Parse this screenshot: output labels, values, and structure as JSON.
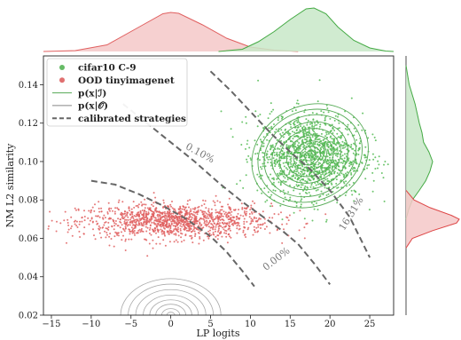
{
  "chart_data": {
    "type": "scatter",
    "xlabel": "LP logits",
    "ylabel": "NM L2 similarity",
    "xlim": [
      -16,
      28
    ],
    "ylim": [
      0.02,
      0.155
    ],
    "xticks": [
      -15,
      -10,
      -5,
      0,
      5,
      10,
      15,
      20,
      25
    ],
    "yticks": [
      0.02,
      0.04,
      0.06,
      0.08,
      0.1,
      0.12,
      0.14
    ],
    "xtick_labels": [
      "−15",
      "−10",
      "−5",
      "0",
      "5",
      "10",
      "15",
      "20",
      "25"
    ],
    "ytick_labels": [
      "0.02",
      "0.04",
      "0.06",
      "0.08",
      "0.10",
      "0.12",
      "0.14"
    ],
    "grid": false,
    "legend_position": "top-left",
    "legend": [
      {
        "label": "cifar10 C-9",
        "kind": "dot",
        "color": "#66bb66"
      },
      {
        "label": "OOD tinyimagenet",
        "kind": "dot",
        "color": "#e07070"
      },
      {
        "label": "p(x|ℐ)",
        "kind": "line",
        "color": "#55aa55"
      },
      {
        "label": "p(x|𝒪)",
        "kind": "line",
        "color": "#888888"
      },
      {
        "label": "calibrated strategies",
        "kind": "dash",
        "color": "#666666"
      }
    ],
    "series": [
      {
        "name": "cifar10 C-9",
        "color": "#55bb55",
        "cluster": {
          "center_x": 17.5,
          "center_y": 0.103,
          "spread_x": 3.3,
          "spread_y": 0.011,
          "n": 1400
        }
      },
      {
        "name": "OOD tinyimagenet",
        "color": "#e06060",
        "cluster": {
          "center_x": 0.5,
          "center_y": 0.069,
          "spread_x": 6.0,
          "spread_y": 0.0045,
          "n": 1300
        }
      }
    ],
    "density_in": {
      "color": "#55aa55",
      "center_x": 17.5,
      "center_y": 0.103,
      "sx": 3.6,
      "sy": 0.0125,
      "rho": 0.25,
      "levels": [
        0.95,
        0.85,
        0.75,
        0.62,
        0.5,
        0.38,
        0.27,
        0.17,
        0.09
      ]
    },
    "density_out": {
      "color": "#aaaaaa",
      "center_x": 0,
      "center_y": 0.02,
      "sx": 6.3,
      "sy": 0.019,
      "levels": [
        1.0,
        0.85,
        0.7,
        0.55,
        0.42,
        0.3,
        0.18,
        0.08
      ]
    },
    "strategies": [
      {
        "label": "0.10%",
        "color": "#666666",
        "points": [
          [
            -6,
            0.13
          ],
          [
            -3,
            0.12
          ],
          [
            0,
            0.11
          ],
          [
            3,
            0.1
          ],
          [
            6,
            0.089
          ],
          [
            9,
            0.079
          ],
          [
            12,
            0.07
          ],
          [
            14,
            0.064
          ],
          [
            16,
            0.057
          ],
          [
            18,
            0.047
          ],
          [
            20,
            0.036
          ]
        ],
        "label_at": [
          3.5,
          0.103
        ],
        "label_angle": 28
      },
      {
        "label": "16.31%",
        "color": "#666666",
        "points": [
          [
            5,
            0.147
          ],
          [
            7.5,
            0.137
          ],
          [
            10,
            0.126
          ],
          [
            12.5,
            0.115
          ],
          [
            15,
            0.105
          ],
          [
            17.5,
            0.096
          ],
          [
            20,
            0.085
          ],
          [
            22.5,
            0.071
          ],
          [
            25,
            0.05
          ]
        ],
        "label_at": [
          23,
          0.072
        ],
        "label_angle": -58
      },
      {
        "label": "0.00%",
        "color": "#666666",
        "points": [
          [
            -10,
            0.09
          ],
          [
            -7,
            0.088
          ],
          [
            -4,
            0.083
          ],
          [
            -1,
            0.077
          ],
          [
            2,
            0.07
          ],
          [
            5,
            0.061
          ],
          [
            7,
            0.053
          ],
          [
            9,
            0.043
          ],
          [
            10.5,
            0.035
          ]
        ],
        "label_at": [
          13.5,
          0.048
        ],
        "label_angle": -38
      }
    ],
    "top_marginal": [
      {
        "name": "OOD tinyimagenet",
        "color": "#e06060",
        "fill": "#f4c8c8",
        "points": [
          [
            -16,
            0.0
          ],
          [
            -12,
            0.02
          ],
          [
            -8,
            0.15
          ],
          [
            -4,
            0.55
          ],
          [
            -1,
            0.85
          ],
          [
            0,
            0.88
          ],
          [
            1,
            0.86
          ],
          [
            4,
            0.6
          ],
          [
            7,
            0.3
          ],
          [
            10,
            0.1
          ],
          [
            13,
            0.03
          ],
          [
            16,
            0.0
          ]
        ]
      },
      {
        "name": "cifar10 C-9",
        "color": "#44aa44",
        "fill": "#c8e8c8",
        "points": [
          [
            6,
            0.0
          ],
          [
            9,
            0.05
          ],
          [
            11,
            0.22
          ],
          [
            13,
            0.45
          ],
          [
            15,
            0.72
          ],
          [
            17,
            0.96
          ],
          [
            18,
            0.98
          ],
          [
            19.5,
            0.85
          ],
          [
            21,
            0.55
          ],
          [
            23,
            0.25
          ],
          [
            25,
            0.08
          ],
          [
            27,
            0.01
          ],
          [
            28,
            0.0
          ]
        ]
      }
    ],
    "right_marginal": [
      {
        "name": "cifar10 C-9",
        "color": "#44aa44",
        "fill": "#c8e8c8",
        "points": [
          [
            0.07,
            0.0
          ],
          [
            0.075,
            0.05
          ],
          [
            0.08,
            0.12
          ],
          [
            0.085,
            0.25
          ],
          [
            0.09,
            0.37
          ],
          [
            0.095,
            0.45
          ],
          [
            0.1,
            0.5
          ],
          [
            0.105,
            0.43
          ],
          [
            0.11,
            0.33
          ],
          [
            0.115,
            0.3
          ],
          [
            0.12,
            0.25
          ],
          [
            0.13,
            0.17
          ],
          [
            0.14,
            0.06
          ],
          [
            0.15,
            0.0
          ]
        ]
      },
      {
        "name": "OOD tinyimagenet",
        "color": "#dd4444",
        "fill": "#f4c8c8",
        "points": [
          [
            0.055,
            0.0
          ],
          [
            0.06,
            0.12
          ],
          [
            0.064,
            0.5
          ],
          [
            0.068,
            0.95
          ],
          [
            0.07,
            1.0
          ],
          [
            0.072,
            0.85
          ],
          [
            0.076,
            0.45
          ],
          [
            0.08,
            0.15
          ],
          [
            0.085,
            0.0
          ]
        ]
      }
    ]
  }
}
